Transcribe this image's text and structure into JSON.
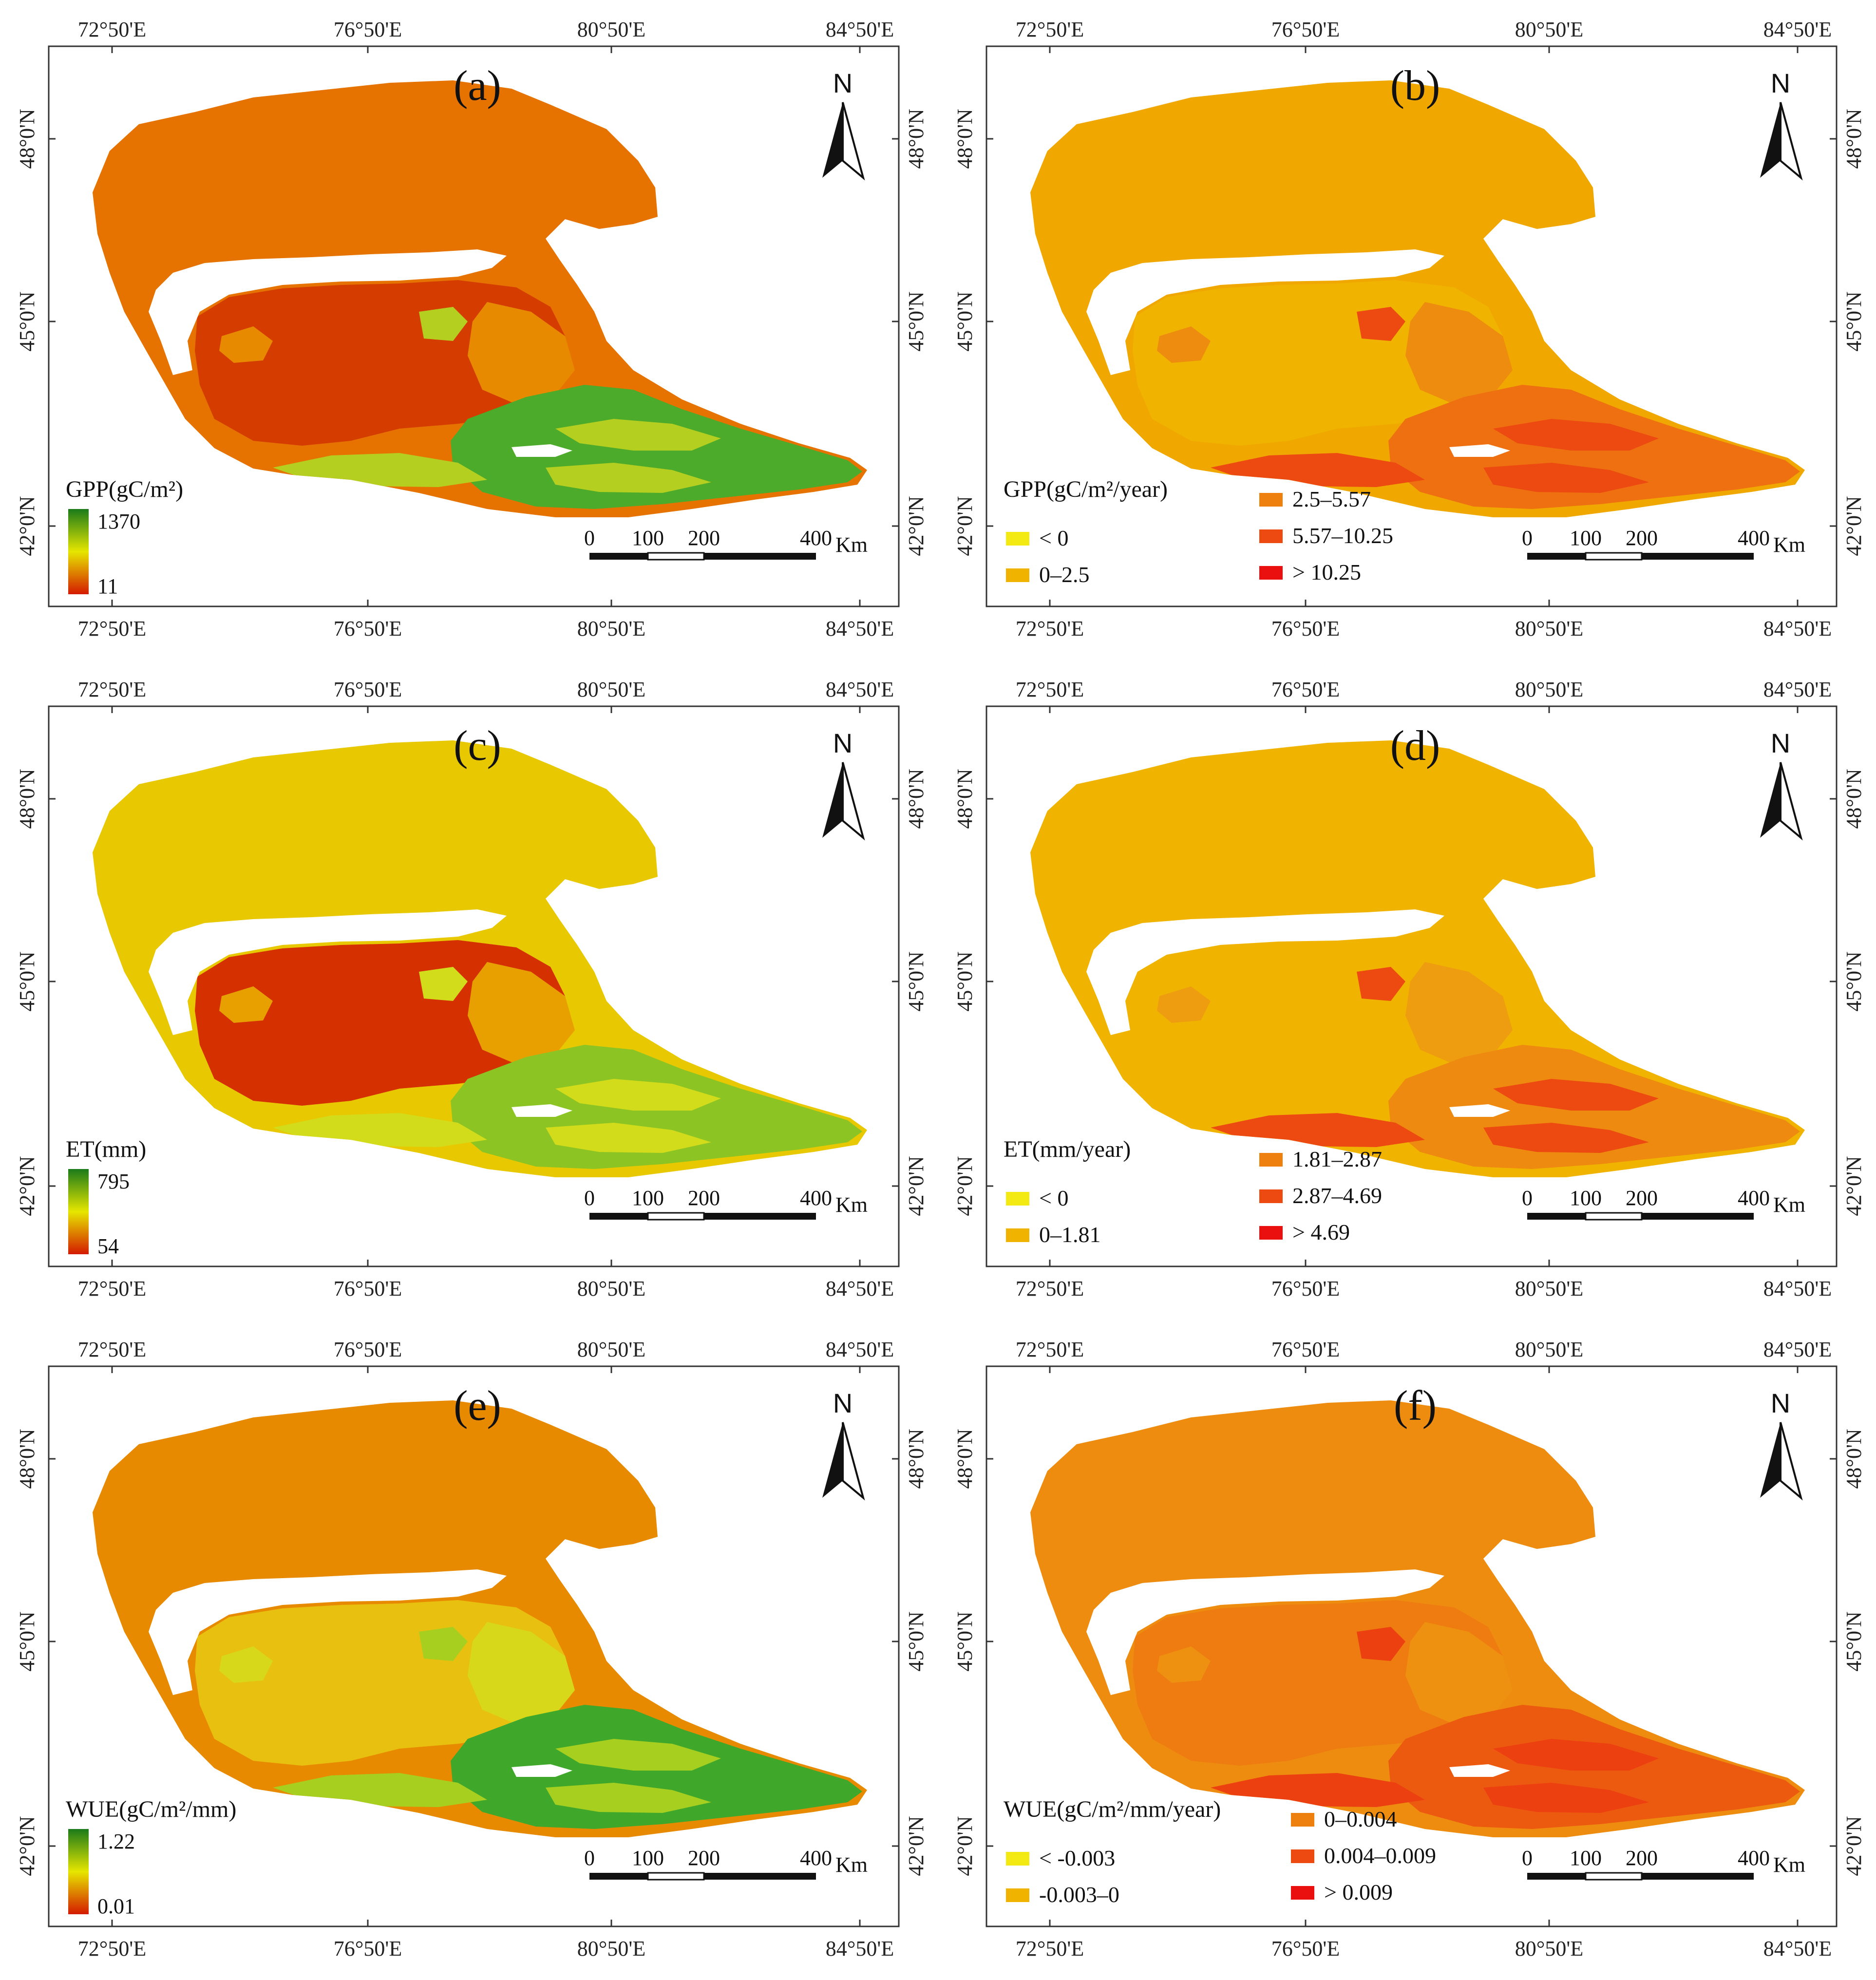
{
  "panels": [
    {
      "id": "a",
      "label": "(a)",
      "kind": "continuous",
      "legend_title": "GPP(gC/m²)",
      "legend_max": "1370",
      "legend_min": "11",
      "gradient": [
        "#1a7a1a",
        "#e6e600",
        "#d41a00"
      ],
      "regions": {
        "north": "#e67300",
        "core": "#d43c00",
        "east": "#4cab2a",
        "bands": "#b4cf1f",
        "mid": "#e88a00"
      }
    },
    {
      "id": "b",
      "label": "(b)",
      "kind": "classes",
      "legend_title": "GPP(gC/m²/year)",
      "classes": [
        {
          "label": "< 0",
          "color": "#f2ea12"
        },
        {
          "label": "0–2.5",
          "color": "#f0b400"
        },
        {
          "label": "2.5–5.57",
          "color": "#ee8010"
        },
        {
          "label": "5.57–10.25",
          "color": "#ec4a10"
        },
        {
          "label": "> 10.25",
          "color": "#ea1010"
        }
      ],
      "regions": {
        "north": "#f0a800",
        "core": "#f0b400",
        "east": "#ee7010",
        "bands": "#ec4a10",
        "mid": "#ee8c10"
      }
    },
    {
      "id": "c",
      "label": "(c)",
      "kind": "continuous",
      "legend_title": "ET(mm)",
      "legend_max": "795",
      "legend_min": "54",
      "gradient": [
        "#1a7a1a",
        "#e6e600",
        "#d41a00"
      ],
      "regions": {
        "north": "#e8c800",
        "core": "#d43000",
        "east": "#8cc424",
        "bands": "#d2dc1a",
        "mid": "#e8a000"
      }
    },
    {
      "id": "d",
      "label": "(d)",
      "kind": "classes",
      "legend_title": "ET(mm/year)",
      "classes": [
        {
          "label": "< 0",
          "color": "#f2ea12"
        },
        {
          "label": "0–1.81",
          "color": "#f0b400"
        },
        {
          "label": "1.81–2.87",
          "color": "#ee8010"
        },
        {
          "label": "2.87–4.69",
          "color": "#ec4a10"
        },
        {
          "label": "> 4.69",
          "color": "#ea1010"
        }
      ],
      "regions": {
        "north": "#f0b400",
        "core": "#f0b400",
        "east": "#ee8a10",
        "bands": "#ec4a10",
        "mid": "#ee9c10"
      }
    },
    {
      "id": "e",
      "label": "(e)",
      "kind": "continuous",
      "legend_title": "WUE(gC/m²/mm)",
      "legend_max": "1.22",
      "legend_min": "0.01",
      "gradient": [
        "#1a7a1a",
        "#e6e600",
        "#d41a00"
      ],
      "regions": {
        "north": "#e88a00",
        "core": "#e8c010",
        "east": "#3fa82a",
        "bands": "#a6cf20",
        "mid": "#d8d81a"
      }
    },
    {
      "id": "f",
      "label": "(f)",
      "kind": "classes",
      "legend_title": "WUE(gC/m²/mm/year)",
      "classes": [
        {
          "label": "< -0.003",
          "color": "#f2ea12"
        },
        {
          "label": "-0.003–0",
          "color": "#f0b400"
        },
        {
          "label": "0–0.004",
          "color": "#ee8010"
        },
        {
          "label": "0.004–0.009",
          "color": "#ec4a10"
        },
        {
          "label": "> 0.009",
          "color": "#ea1010"
        }
      ],
      "regions": {
        "north": "#ee8c10",
        "core": "#ee7c10",
        "east": "#ec5a10",
        "bands": "#ec4010",
        "mid": "#ee9010"
      }
    }
  ],
  "axes": {
    "lon_labels": [
      "72°50'E",
      "76°50'E",
      "80°50'E",
      "84°50'E"
    ],
    "lat_labels": [
      "48°0'N",
      "45°0'N",
      "42°0'N"
    ]
  },
  "north_arrow": {
    "letter": "N"
  },
  "scale_bar": {
    "ticks": [
      "0",
      "100",
      "200",
      "400"
    ],
    "unit": "Km"
  }
}
